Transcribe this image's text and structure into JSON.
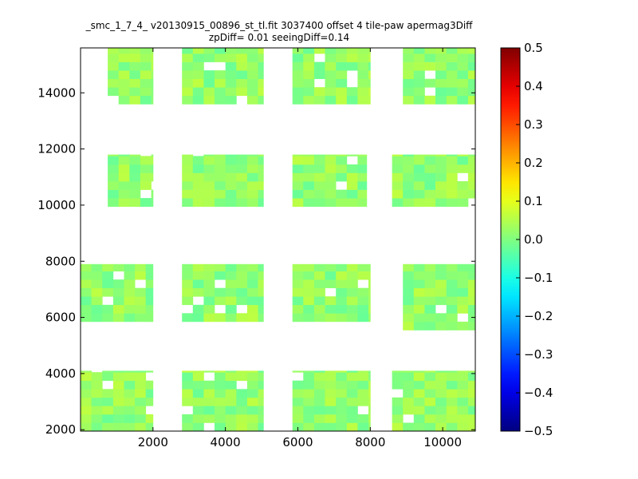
{
  "chart_data": {
    "type": "heatmap",
    "title": "_smc_1_7_4_ v20130915_00896_st_tl.fit 3037400 offset 4 tile-paw apermag3Diff",
    "subtitle": "zpDiff= 0.01 seeingDiff=0.14",
    "xlabel": "",
    "ylabel": "",
    "xlim": [
      0,
      10900
    ],
    "ylim": [
      1950,
      15600
    ],
    "x_ticks": [
      2000,
      4000,
      6000,
      8000,
      10000
    ],
    "y_ticks": [
      2000,
      4000,
      6000,
      8000,
      10000,
      12000,
      14000
    ],
    "colorbar": {
      "colormap": "jet",
      "vmin": -0.5,
      "vmax": 0.5,
      "ticks": [
        0.5,
        0.4,
        0.3,
        0.2,
        0.1,
        0.0,
        -0.1,
        -0.2,
        -0.3,
        -0.4,
        -0.5
      ],
      "tick_labels": [
        "0.5",
        "0.4",
        "0.3",
        "0.2",
        "0.1",
        "0.0",
        "−0.1",
        "−0.2",
        "−0.3",
        "−0.4",
        "−0.5"
      ],
      "placement": "right"
    },
    "cell_size": 300,
    "regions": [
      {
        "name": "detector-row4-col1",
        "x_range": [
          750,
          2000
        ],
        "y_range": [
          13600,
          15600
        ]
      },
      {
        "name": "detector-row4-col2",
        "x_range": [
          2800,
          5050
        ],
        "y_range": [
          13600,
          15600
        ]
      },
      {
        "name": "detector-row4-col3",
        "x_range": [
          5850,
          8000
        ],
        "y_range": [
          13600,
          15600
        ]
      },
      {
        "name": "detector-row4-col4",
        "x_range": [
          8900,
          10900
        ],
        "y_range": [
          13600,
          15600
        ]
      },
      {
        "name": "detector-row3-col1",
        "x_range": [
          750,
          2000
        ],
        "y_range": [
          9950,
          11800
        ]
      },
      {
        "name": "detector-row3-col2",
        "x_range": [
          2800,
          5050
        ],
        "y_range": [
          9950,
          11800
        ]
      },
      {
        "name": "detector-row3-col3",
        "x_range": [
          5850,
          7900
        ],
        "y_range": [
          9950,
          11800
        ]
      },
      {
        "name": "detector-row3-col4",
        "x_range": [
          8600,
          10900
        ],
        "y_range": [
          9950,
          11800
        ]
      },
      {
        "name": "detector-row2-col1",
        "x_range": [
          0,
          2000
        ],
        "y_range": [
          5850,
          7900
        ]
      },
      {
        "name": "detector-row2-col2",
        "x_range": [
          2800,
          5050
        ],
        "y_range": [
          5850,
          7900
        ]
      },
      {
        "name": "detector-row2-col3",
        "x_range": [
          5850,
          8000
        ],
        "y_range": [
          5850,
          7900
        ]
      },
      {
        "name": "detector-row2-col4",
        "x_range": [
          8900,
          10900
        ],
        "y_range": [
          5550,
          7900
        ]
      },
      {
        "name": "detector-row1-col1",
        "x_range": [
          0,
          2000
        ],
        "y_range": [
          1950,
          4100
        ]
      },
      {
        "name": "detector-row1-col2",
        "x_range": [
          2800,
          5050
        ],
        "y_range": [
          1950,
          4100
        ]
      },
      {
        "name": "detector-row1-col3",
        "x_range": [
          5850,
          8000
        ],
        "y_range": [
          1950,
          4100
        ]
      },
      {
        "name": "detector-row1-col4",
        "x_range": [
          8600,
          10900
        ],
        "y_range": [
          1950,
          4100
        ]
      }
    ],
    "value_range_observed": [
      -0.09,
      0.1
    ]
  }
}
